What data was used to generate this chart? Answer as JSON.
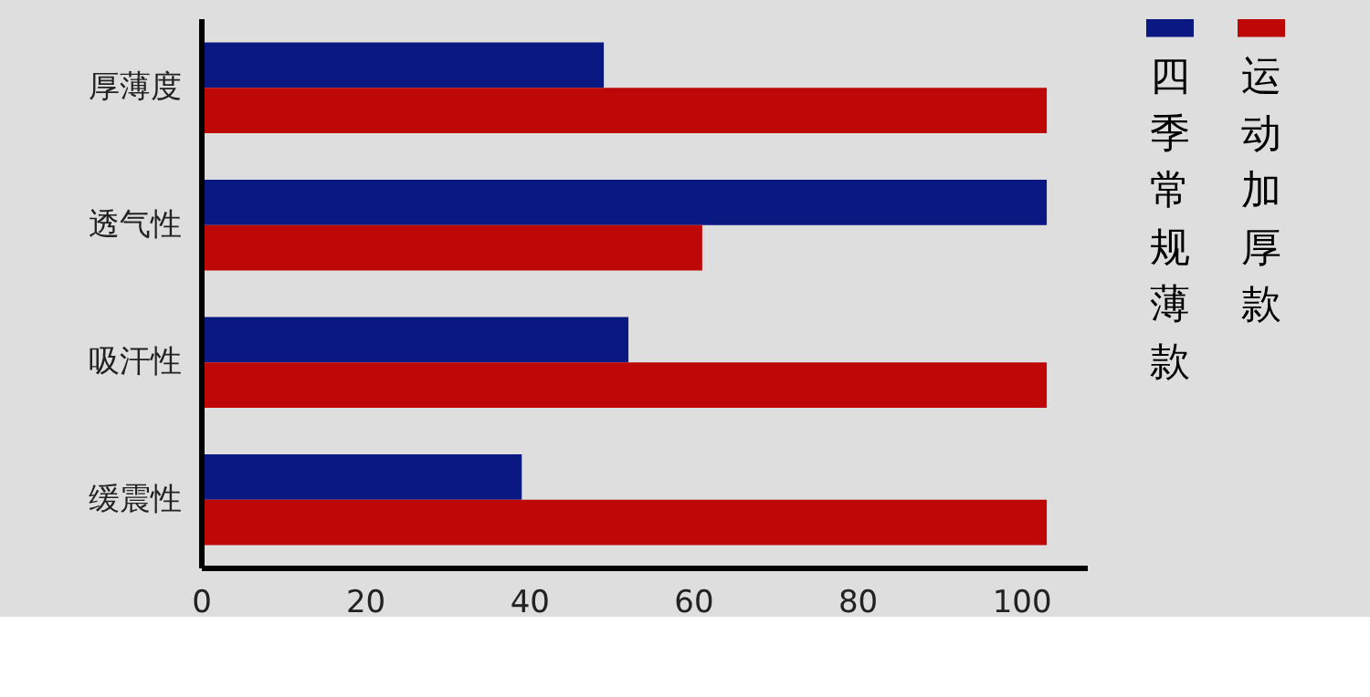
{
  "chart_data": {
    "type": "bar",
    "orientation": "horizontal",
    "categories": [
      "厚薄度",
      "透气性",
      "吸汗性",
      "缓震性"
    ],
    "series": [
      {
        "name": "四季常规薄款",
        "color": "#0a1882",
        "values": [
          49,
          103,
          52,
          39
        ]
      },
      {
        "name": "运动加厚款",
        "color": "#be0808",
        "values": [
          103,
          61,
          103,
          103
        ]
      }
    ],
    "xlim": [
      0,
      108
    ],
    "xticks": [
      0,
      20,
      40,
      60,
      80,
      100
    ],
    "grid": false,
    "legend": "right"
  }
}
